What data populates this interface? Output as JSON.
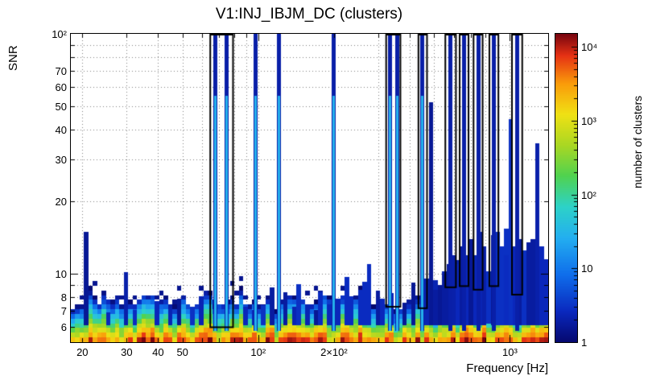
{
  "chart_data": {
    "type": "heatmap",
    "title": "V1:INJ_IBJM_DC (clusters)",
    "xlabel": "Frequency [Hz]",
    "ylabel": "SNR",
    "zlabel": "number of clusters",
    "x_scale": "log",
    "y_scale": "log",
    "z_scale": "log",
    "x_range": [
      18,
      1420
    ],
    "y_range": [
      5.2,
      100
    ],
    "z_range": [
      1,
      15000
    ],
    "grid": true,
    "legend_position": "right-colorbar",
    "x_ticks": [
      {
        "v": 20,
        "label": "20"
      },
      {
        "v": 30,
        "label": "30"
      },
      {
        "v": 40,
        "label": "40"
      },
      {
        "v": 50,
        "label": "50"
      },
      {
        "v": 100,
        "label": "10²"
      },
      {
        "v": 200,
        "label": "2×10²"
      },
      {
        "v": 1000,
        "label": "10³"
      }
    ],
    "y_ticks": [
      {
        "v": 6,
        "label": "6"
      },
      {
        "v": 7,
        "label": "7"
      },
      {
        "v": 8,
        "label": "8"
      },
      {
        "v": 10,
        "label": "10"
      },
      {
        "v": 20,
        "label": "20"
      },
      {
        "v": 30,
        "label": "30"
      },
      {
        "v": 40,
        "label": "40"
      },
      {
        "v": 50,
        "label": "50"
      },
      {
        "v": 60,
        "label": "60"
      },
      {
        "v": 70,
        "label": "70"
      },
      {
        "v": 100,
        "label": "10²"
      }
    ],
    "z_ticks": [
      {
        "v": 1,
        "label": "1"
      },
      {
        "v": 10,
        "label": "10"
      },
      {
        "v": 100,
        "label": "10²"
      },
      {
        "v": 1000,
        "label": "10³"
      },
      {
        "v": 10000,
        "label": "10⁴"
      }
    ],
    "palette_stops": [
      [
        0.0,
        [
          5,
          8,
          110
        ]
      ],
      [
        0.1,
        [
          10,
          40,
          190
        ]
      ],
      [
        0.22,
        [
          15,
          110,
          235
        ]
      ],
      [
        0.34,
        [
          35,
          175,
          240
        ]
      ],
      [
        0.44,
        [
          45,
          210,
          200
        ]
      ],
      [
        0.54,
        [
          80,
          210,
          80
        ]
      ],
      [
        0.64,
        [
          170,
          215,
          35
        ]
      ],
      [
        0.74,
        [
          240,
          225,
          20
        ]
      ],
      [
        0.84,
        [
          250,
          155,
          10
        ]
      ],
      [
        0.93,
        [
          230,
          50,
          20
        ]
      ],
      [
        1.0,
        [
          120,
          5,
          15
        ]
      ]
    ],
    "band": {
      "amp": 5200,
      "amp_jitter": 1.1,
      "tau": 0.3,
      "boost_from": 580,
      "boost": 1.7
    },
    "forest": {
      "f1": 545,
      "f2": 1420,
      "snr_min": 9.2,
      "snr_max": 11.8
    },
    "speckle_rate": 0.3,
    "noise_seed": 1337,
    "spikes": [
      [
        21,
        15
      ],
      [
        25,
        6.9
      ],
      [
        30,
        10.2
      ],
      [
        33,
        7.1
      ],
      [
        39,
        7.7
      ],
      [
        45,
        7.2
      ],
      [
        49,
        7.9
      ],
      [
        55,
        7.3
      ],
      [
        59,
        8.1
      ],
      [
        88,
        7.3
      ],
      [
        95,
        7.1
      ],
      [
        104,
        7.4
      ],
      [
        113,
        8.8
      ],
      [
        127,
        8.4
      ],
      [
        136,
        7.3
      ],
      [
        146,
        9.1
      ],
      [
        157,
        7.5
      ],
      [
        168,
        7.1
      ],
      [
        180,
        8.4
      ],
      [
        193,
        7.5
      ],
      [
        207,
        7.9
      ],
      [
        222,
        9.7
      ],
      [
        236,
        8.1
      ],
      [
        250,
        8.6
      ],
      [
        264,
        9.3
      ],
      [
        278,
        11
      ],
      [
        295,
        8.5
      ],
      [
        312,
        7.9
      ],
      [
        340,
        8.3
      ],
      [
        385,
        7.6
      ],
      [
        420,
        9.2
      ],
      [
        440,
        8.4
      ],
      [
        465,
        9.6
      ],
      [
        478,
        8.8
      ],
      [
        490,
        52
      ],
      [
        500,
        9.4
      ],
      [
        512,
        8.6
      ],
      [
        525,
        9
      ],
      [
        540,
        10
      ],
      [
        568,
        11
      ],
      [
        590,
        12
      ],
      [
        620,
        11
      ],
      [
        645,
        13
      ],
      [
        662,
        12
      ],
      [
        700,
        14
      ],
      [
        725,
        12
      ],
      [
        752,
        15
      ],
      [
        775,
        12.5
      ],
      [
        800,
        13
      ],
      [
        840,
        14.5
      ],
      [
        868,
        12
      ],
      [
        895,
        15
      ],
      [
        930,
        13
      ],
      [
        958,
        15.5
      ],
      [
        985,
        12
      ],
      [
        1000,
        44
      ],
      [
        1040,
        13
      ],
      [
        1070,
        12
      ],
      [
        1100,
        14
      ],
      [
        1140,
        12.5
      ],
      [
        1170,
        13.5
      ],
      [
        1205,
        12
      ],
      [
        1240,
        14
      ],
      [
        1270,
        12
      ],
      [
        1290,
        35
      ],
      [
        1320,
        13
      ],
      [
        1355,
        12
      ],
      [
        1390,
        11.5
      ]
    ],
    "tall_lines": [
      {
        "f": 67.5,
        "core": true
      },
      {
        "f": 74.5,
        "core": true
      },
      {
        "f": 97,
        "core": true
      },
      {
        "f": 120,
        "core": true
      },
      {
        "f": 198,
        "core": true
      },
      {
        "f": 333,
        "core": true
      },
      {
        "f": 356,
        "core": true
      },
      {
        "f": 448,
        "core": true
      },
      {
        "f": 580,
        "core": false
      },
      {
        "f": 655,
        "core": false
      },
      {
        "f": 748,
        "core": false
      },
      {
        "f": 863,
        "core": false
      },
      {
        "f": 1068,
        "core": false
      }
    ],
    "boxes": [
      {
        "f1": 64,
        "f2": 80,
        "snr_min": 6.0
      },
      {
        "f1": 320,
        "f2": 370,
        "snr_min": 7.3
      },
      {
        "f1": 430,
        "f2": 472,
        "snr_min": 7.2
      },
      {
        "f1": 550,
        "f2": 615,
        "snr_min": 8.8
      },
      {
        "f1": 627,
        "f2": 690,
        "snr_min": 8.9
      },
      {
        "f1": 712,
        "f2": 785,
        "snr_min": 8.6
      },
      {
        "f1": 823,
        "f2": 907,
        "snr_min": 8.9
      },
      {
        "f1": 1012,
        "f2": 1128,
        "snr_min": 8.2
      }
    ]
  }
}
